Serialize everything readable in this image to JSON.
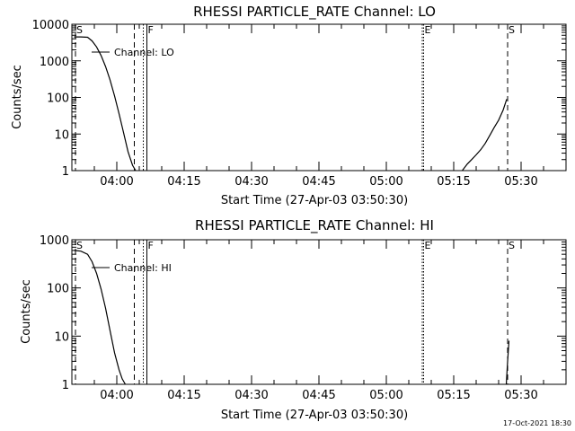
{
  "chart_data": [
    {
      "type": "line",
      "title": "RHESSI PARTICLE_RATE Channel: LO",
      "xlabel": "Start Time (27-Apr-03 03:50:30)",
      "ylabel": "Counts/sec",
      "yscale": "log",
      "ylim": [
        1,
        10000
      ],
      "xlim": [
        230,
        340
      ],
      "y_ticks": [
        {
          "value": 1,
          "label": "1"
        },
        {
          "value": 10,
          "label": "10"
        },
        {
          "value": 100,
          "label": "100"
        },
        {
          "value": 1000,
          "label": "1000"
        },
        {
          "value": 10000,
          "label": "10000"
        }
      ],
      "x_ticks": [
        {
          "value": 240,
          "label": "04:00"
        },
        {
          "value": 255,
          "label": "04:15"
        },
        {
          "value": 270,
          "label": "04:30"
        },
        {
          "value": 285,
          "label": "04:45"
        },
        {
          "value": 300,
          "label": "05:00"
        },
        {
          "value": 315,
          "label": "05:15"
        },
        {
          "value": 330,
          "label": "05:30"
        }
      ],
      "legend": {
        "label": "Channel: LO",
        "placement": "top-left"
      },
      "series": [
        {
          "name": "Channel: LO",
          "segments": [
            {
              "x": [
                230.5,
                232,
                233.5,
                234.5,
                235.5,
                236.5,
                237.5,
                238.5,
                239.5,
                240.5,
                241.5,
                242.5,
                243.5,
                244.2
              ],
              "y": [
                4500,
                4500,
                4400,
                3500,
                2400,
                1400,
                700,
                300,
                110,
                36,
                11,
                3.3,
                1.4,
                1
              ]
            },
            {
              "x": [
                316.9,
                318,
                319,
                320,
                321,
                322,
                323,
                324,
                325,
                326,
                326.8
              ],
              "y": [
                1,
                1.5,
                2.0,
                2.7,
                3.7,
                5.5,
                9,
                15,
                24,
                45,
                90
              ]
            }
          ]
        }
      ],
      "flags": [
        {
          "label": "S",
          "x": 230.8,
          "style": "dashed"
        },
        {
          "label": "F",
          "x": 246.7,
          "style": "solid"
        },
        {
          "label": "E",
          "x": 308.3,
          "style": "dotted"
        },
        {
          "label": "S",
          "x": 327,
          "style": "dashed"
        }
      ],
      "markers": [
        {
          "x": 243.9,
          "style": "dashed"
        },
        {
          "x": 245.9,
          "style": "dotted"
        },
        {
          "x": 308.0,
          "style": "dotted"
        }
      ]
    },
    {
      "type": "line",
      "title": "RHESSI PARTICLE_RATE Channel: HI",
      "xlabel": "Start Time (27-Apr-03 03:50:30)",
      "ylabel": "Counts/sec",
      "yscale": "log",
      "ylim": [
        1,
        1000
      ],
      "xlim": [
        230,
        340
      ],
      "y_ticks": [
        {
          "value": 1,
          "label": "1"
        },
        {
          "value": 10,
          "label": "10"
        },
        {
          "value": 100,
          "label": "100"
        },
        {
          "value": 1000,
          "label": "1000"
        }
      ],
      "x_ticks": [
        {
          "value": 240,
          "label": "04:00"
        },
        {
          "value": 255,
          "label": "04:15"
        },
        {
          "value": 270,
          "label": "04:30"
        },
        {
          "value": 285,
          "label": "04:45"
        },
        {
          "value": 300,
          "label": "05:00"
        },
        {
          "value": 315,
          "label": "05:15"
        },
        {
          "value": 330,
          "label": "05:30"
        }
      ],
      "legend": {
        "label": "Channel: HI",
        "placement": "top-left"
      },
      "series": [
        {
          "name": "Channel: HI",
          "segments": [
            {
              "x": [
                230.5,
                232,
                233.5,
                234.5,
                235.5,
                236.5,
                237.5,
                238.5,
                239.5,
                240.5,
                241.2,
                241.9
              ],
              "y": [
                600,
                580,
                500,
                350,
                200,
                95,
                38,
                13,
                4.5,
                2,
                1.3,
                1
              ]
            },
            {
              "x": [
                326.7,
                327,
                327.3
              ],
              "y": [
                1,
                3,
                8
              ]
            }
          ]
        }
      ],
      "flags": [
        {
          "label": "S",
          "x": 230.8,
          "style": "dashed"
        },
        {
          "label": "F",
          "x": 246.7,
          "style": "solid"
        },
        {
          "label": "E",
          "x": 308.3,
          "style": "dotted"
        },
        {
          "label": "S",
          "x": 327,
          "style": "dashed"
        }
      ],
      "markers": [
        {
          "x": 243.9,
          "style": "dashed"
        },
        {
          "x": 245.9,
          "style": "dotted"
        },
        {
          "x": 308.0,
          "style": "dotted"
        }
      ]
    }
  ],
  "footer": {
    "timestamp": "17-Oct-2021 18:30"
  }
}
